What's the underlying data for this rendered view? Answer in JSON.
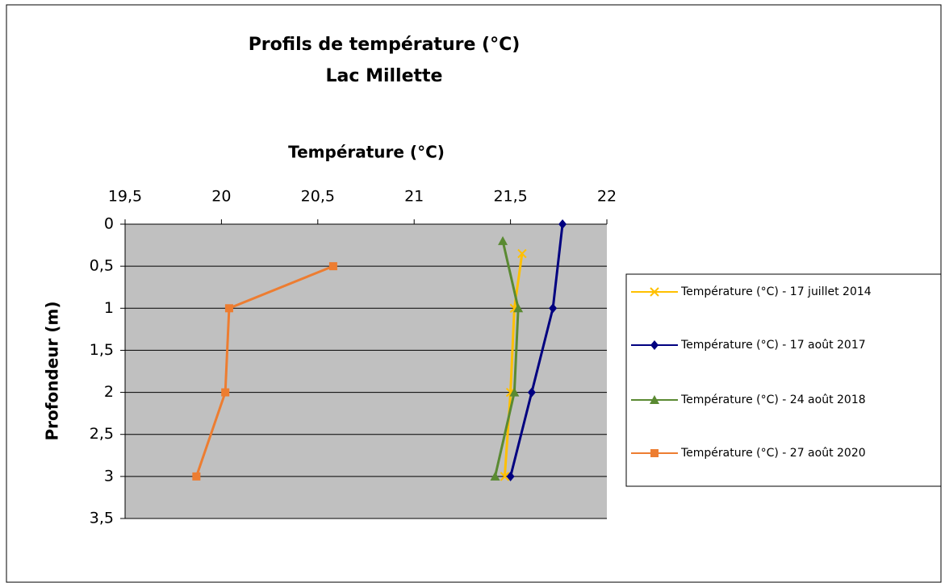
{
  "chart_data": {
    "type": "line",
    "title": "Profils de température (°C)",
    "subtitle": "Lac Millette",
    "x_label": "Température (°C)",
    "y_label": "Profondeur (m)",
    "xlim": [
      19.5,
      22
    ],
    "xticks": [
      {
        "value": 19.5,
        "label": "19,5"
      },
      20,
      {
        "value": 20.5,
        "label": "20,5"
      },
      21,
      {
        "value": 21.5,
        "label": "21,5"
      },
      22
    ],
    "ylim": [
      0,
      3.5
    ],
    "yticks": [
      0,
      {
        "value": 0.5,
        "label": "0,5"
      },
      1,
      {
        "value": 1.5,
        "label": "1,5"
      },
      2,
      {
        "value": 2.5,
        "label": "2,5"
      },
      3,
      {
        "value": 3.5,
        "label": "3,5"
      }
    ],
    "y_inverted": true,
    "grid": true,
    "legend": "right",
    "series": [
      {
        "name": "Température  (°C) - 17 juillet 2014",
        "color": "#ffc000",
        "marker": "x",
        "x": [
          21.56,
          21.52,
          21.5,
          21.47
        ],
        "values": [
          0.35,
          1,
          2,
          3
        ]
      },
      {
        "name": "Température (°C) - 17 août 2017",
        "color": "#000080",
        "marker": "diamond",
        "x": [
          21.77,
          21.72,
          21.61,
          21.5
        ],
        "values": [
          0,
          1,
          2,
          3
        ]
      },
      {
        "name": "Température (°C) - 24 août 2018",
        "color": "#5a8a32",
        "marker": "triangle",
        "x": [
          21.46,
          21.54,
          21.52,
          21.42
        ],
        "values": [
          0.2,
          1,
          2,
          3
        ]
      },
      {
        "name": "Température (°C) - 27 août 2020",
        "color": "#ed7d31",
        "marker": "square",
        "x": [
          20.58,
          20.04,
          20.02,
          19.87
        ],
        "values": [
          0.5,
          1,
          2,
          3
        ]
      }
    ]
  }
}
